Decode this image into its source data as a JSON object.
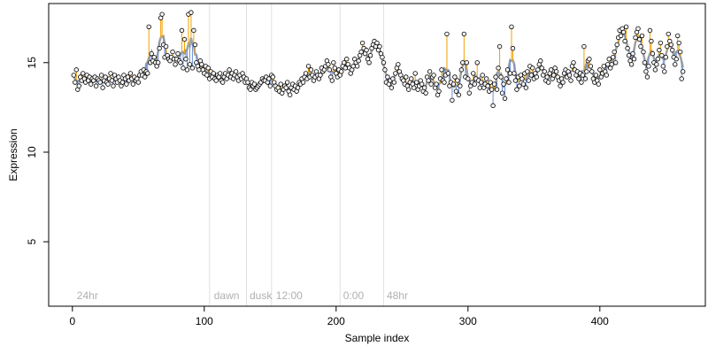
{
  "chart_data": {
    "type": "scatter",
    "title": "",
    "xlabel": "Sample index",
    "ylabel": "Expression",
    "xlim": [
      -18,
      480
    ],
    "ylim": [
      1.4,
      18.3
    ],
    "x_ticks": [
      0,
      100,
      200,
      300,
      400
    ],
    "y_ticks": [
      5,
      10,
      15
    ],
    "x_tick_labels": [
      "0",
      "100",
      "200",
      "300",
      "400"
    ],
    "y_tick_labels": [
      "5",
      "10",
      "15"
    ],
    "grid": false,
    "legend": "none",
    "colors": {
      "points_fill": "#f5f5f5",
      "points_stroke": "#000000",
      "residual_above": "#f0a000",
      "residual_below": "#6b8fd6",
      "fit_line": "#a0a0a0",
      "divider": "#e0e0e0",
      "annotation_text": "#b0b0b0"
    },
    "annotations": [
      {
        "x": 2,
        "label": "24hr"
      },
      {
        "x": 106,
        "label": "dawn"
      },
      {
        "x": 133,
        "label": "dusk"
      },
      {
        "x": 153,
        "label": "12:00"
      },
      {
        "x": 204,
        "label": "0:00"
      },
      {
        "x": 237,
        "label": "48hr"
      }
    ],
    "dividers": [
      104,
      132,
      151,
      203,
      236
    ],
    "series": [
      {
        "values": [
          14.3,
          13.9,
          14.6,
          13.5,
          13.7,
          14.2,
          14.0,
          14.4,
          14.1,
          13.9,
          14.3,
          14.0,
          14.2,
          13.8,
          14.1,
          14.0,
          14.2,
          13.7,
          14.1,
          14.0,
          13.9,
          14.3,
          13.6,
          14.0,
          14.2,
          13.9,
          13.8,
          14.1,
          14.4,
          14.0,
          13.7,
          14.3,
          14.1,
          13.9,
          14.2,
          14.0,
          13.7,
          13.9,
          14.3,
          14.1,
          13.8,
          14.2,
          14.0,
          14.4,
          14.1,
          13.8,
          14.2,
          14.0,
          14.1,
          13.9,
          14.3,
          14.5,
          14.3,
          14.6,
          14.2,
          14.5,
          14.4,
          17.0,
          15.0,
          15.5,
          15.1,
          15.3,
          15.0,
          14.8,
          15.0,
          15.8,
          17.5,
          17.7,
          16.0,
          15.3,
          15.9,
          15.4,
          15.2,
          15.1,
          15.3,
          15.6,
          15.2,
          14.9,
          15.2,
          15.5,
          15.1,
          15.0,
          16.8,
          14.7,
          16.3,
          15.2,
          14.6,
          17.7,
          14.9,
          17.8,
          14.7,
          16.8,
          16.0,
          15.0,
          14.8,
          14.6,
          15.1,
          14.9,
          14.6,
          14.4,
          14.8,
          14.3,
          14.7,
          14.1,
          14.5,
          14.2,
          14.4,
          14.1,
          14.0,
          14.3,
          14.2,
          14.4,
          14.0,
          13.9,
          14.2,
          14.4,
          14.1,
          14.3,
          14.6,
          14.2,
          14.4,
          14.1,
          14.3,
          14.5,
          14.2,
          14.0,
          14.3,
          14.1,
          14.4,
          14.2,
          13.9,
          14.1,
          13.9,
          13.6,
          13.5,
          13.9,
          13.7,
          13.8,
          13.5,
          13.6,
          13.7,
          13.8,
          13.9,
          14.1,
          14.0,
          14.0,
          14.2,
          13.9,
          14.1,
          13.7,
          14.3,
          14.2,
          13.9,
          13.7,
          13.5,
          13.6,
          13.4,
          13.8,
          13.3,
          13.5,
          13.7,
          13.6,
          13.9,
          13.4,
          13.2,
          13.6,
          13.8,
          13.5,
          13.7,
          13.4,
          13.6,
          13.9,
          13.8,
          14.1,
          13.9,
          14.2,
          14.4,
          14.1,
          14.8,
          14.2,
          14.6,
          14.3,
          14.0,
          14.2,
          14.5,
          14.3,
          14.1,
          14.3,
          14.7,
          14.5,
          14.6,
          14.8,
          15.1,
          14.9,
          14.6,
          14.2,
          14.0,
          15.0,
          14.7,
          14.4,
          14.2,
          14.6,
          14.3,
          14.5,
          14.8,
          15.0,
          14.7,
          15.2,
          14.9,
          14.7,
          14.4,
          14.6,
          14.8,
          15.2,
          15.0,
          14.8,
          15.1,
          15.4,
          15.6,
          16.1,
          15.8,
          15.5,
          15.7,
          15.2,
          15.0,
          15.4,
          15.8,
          16.0,
          16.2,
          15.9,
          16.1,
          15.7,
          15.9,
          15.5,
          15.3,
          15.0,
          14.6,
          13.9,
          14.2,
          13.8,
          14.0,
          13.6,
          14.1,
          13.9,
          14.4,
          14.7,
          14.9,
          14.5,
          14.3,
          14.1,
          14.0,
          13.8,
          14.2,
          13.7,
          13.5,
          13.9,
          14.1,
          13.8,
          13.6,
          14.4,
          13.9,
          13.5,
          13.7,
          14.0,
          13.8,
          13.4,
          13.6,
          13.3,
          14.2,
          14.0,
          14.5,
          13.8,
          14.2,
          14.3,
          13.6,
          13.8,
          13.2,
          13.4,
          14.1,
          14.6,
          14.0,
          13.9,
          14.3,
          16.6,
          14.4,
          13.7,
          13.9,
          12.9,
          13.8,
          14.2,
          13.4,
          14.0,
          13.2,
          13.7,
          14.6,
          15.0,
          16.6,
          14.2,
          15.0,
          14.1,
          13.3,
          13.7,
          13.9,
          14.4,
          13.8,
          14.1,
          15.0,
          14.0,
          13.6,
          13.9,
          14.3,
          13.6,
          13.8,
          14.1,
          13.7,
          13.4,
          13.9,
          13.5,
          12.6,
          13.8,
          14.2,
          13.5,
          14.7,
          15.9,
          14.2,
          13.3,
          13.8,
          13.0,
          14.1,
          14.6,
          13.9,
          14.4,
          17.0,
          15.8,
          14.4,
          14.0,
          13.5,
          14.2,
          13.7,
          14.3,
          14.1,
          13.8,
          14.4,
          13.6,
          14.5,
          14.0,
          14.8,
          14.3,
          14.7,
          14.1,
          14.4,
          14.2,
          14.6,
          14.9,
          15.1,
          14.7,
          14.3,
          14.5,
          14.0,
          14.2,
          13.9,
          14.4,
          14.6,
          14.1,
          14.3,
          14.7,
          14.5,
          14.2,
          14.0,
          13.7,
          14.1,
          13.9,
          14.4,
          14.6,
          14.2,
          14.5,
          14.3,
          14.0,
          14.8,
          15.0,
          14.6,
          14.3,
          14.5,
          14.1,
          14.4,
          13.9,
          14.3,
          15.9,
          14.1,
          14.5,
          15.1,
          15.2,
          14.8,
          14.5,
          14.1,
          13.9,
          14.3,
          14.0,
          13.8,
          14.6,
          14.2,
          14.4,
          14.8,
          14.5,
          14.3,
          14.9,
          15.2,
          14.7,
          14.9,
          15.3,
          15.6,
          15.0,
          16.0,
          16.4,
          16.8,
          16.5,
          16.9,
          16.7,
          16.2,
          17.0,
          15.8,
          15.4,
          15.1,
          14.9,
          15.5,
          15.2,
          16.4,
          16.7,
          16.9,
          16.3,
          15.9,
          16.5,
          15.6,
          15.0,
          14.5,
          14.2,
          14.8,
          16.8,
          16.2,
          15.5,
          15.0,
          14.6,
          14.9,
          15.2,
          15.7,
          16.1,
          15.4,
          14.8,
          14.5,
          15.3,
          15.9,
          16.6,
          16.2,
          16.0,
          15.7,
          15.3,
          14.9,
          15.2,
          16.5,
          16.1,
          15.6,
          14.1,
          14.5
        ]
      }
    ]
  }
}
